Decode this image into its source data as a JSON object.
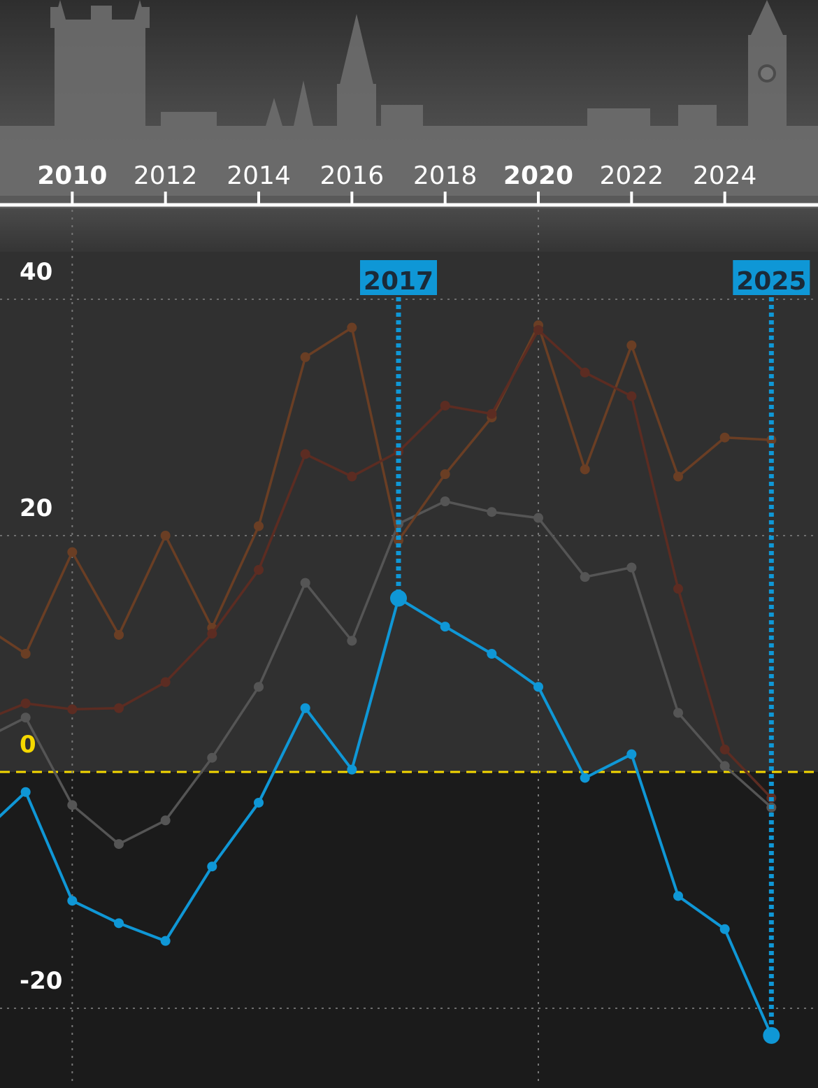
{
  "chart_data": {
    "type": "line",
    "title": "",
    "xlabel": "",
    "ylabel": "",
    "x_ticks": [
      {
        "label": "2010",
        "value": 2010,
        "bold": true
      },
      {
        "label": "2012",
        "value": 2012,
        "bold": false
      },
      {
        "label": "2014",
        "value": 2014,
        "bold": false
      },
      {
        "label": "2016",
        "value": 2016,
        "bold": false
      },
      {
        "label": "2018",
        "value": 2018,
        "bold": false
      },
      {
        "label": "2020",
        "value": 2020,
        "bold": true
      },
      {
        "label": "2022",
        "value": 2022,
        "bold": false
      },
      {
        "label": "2024",
        "value": 2024,
        "bold": false
      }
    ],
    "y_ticks": [
      {
        "label": "40",
        "value": 40
      },
      {
        "label": "20",
        "value": 20
      },
      {
        "label": "0",
        "value": 0
      },
      {
        "label": "-20",
        "value": -20
      }
    ],
    "xlim": [
      2008.45,
      2026.0
    ],
    "ylim": [
      -26.5,
      40
    ],
    "grid": true,
    "zero_line_color": "#f5d800",
    "highlights": [
      {
        "label": "2017",
        "x": 2017,
        "color": "#0f97d6"
      },
      {
        "label": "2025",
        "x": 2025,
        "color": "#0f97d6"
      }
    ],
    "series": [
      {
        "color": "#0f97d6",
        "emphasis": true,
        "x": [
          2008,
          2009,
          2010,
          2011,
          2012,
          2013,
          2014,
          2015,
          2016,
          2017,
          2018,
          2019,
          2020,
          2021,
          2022,
          2023,
          2024,
          2025
        ],
        "y": [
          -5.4,
          -1.7,
          -10.9,
          -12.8,
          -14.3,
          -8.0,
          -2.6,
          5.4,
          0.2,
          14.7,
          12.3,
          10.0,
          7.2,
          -0.5,
          1.5,
          -10.5,
          -13.3,
          -22.3
        ]
      },
      {
        "color": "#555555",
        "emphasis": false,
        "x": [
          2008,
          2009,
          2010,
          2011,
          2012,
          2013,
          2014,
          2015,
          2016,
          2017,
          2018,
          2019,
          2020,
          2021,
          2022,
          2023,
          2024,
          2025
        ],
        "y": [
          2.6,
          4.6,
          -2.8,
          -6.1,
          -4.1,
          1.2,
          7.2,
          16.0,
          11.1,
          21.0,
          22.9,
          22.0,
          21.5,
          16.5,
          17.3,
          5.0,
          0.5,
          -3.0
        ]
      },
      {
        "color": "#6a3e24",
        "emphasis": false,
        "x": [
          2008,
          2009,
          2010,
          2011,
          2012,
          2013,
          2014,
          2015,
          2016,
          2017,
          2018,
          2019,
          2020,
          2021,
          2022,
          2023,
          2024,
          2025
        ],
        "y": [
          12.6,
          10.0,
          18.6,
          11.6,
          20.0,
          12.2,
          20.8,
          35.1,
          37.6,
          19.6,
          25.2,
          30.0,
          37.8,
          25.6,
          36.1,
          25.0,
          28.3,
          28.1
        ]
      },
      {
        "color": "#5c2c22",
        "emphasis": false,
        "x": [
          2008,
          2009,
          2010,
          2011,
          2012,
          2013,
          2014,
          2015,
          2016,
          2017,
          2018,
          2019,
          2020,
          2021,
          2022,
          2023,
          2024,
          2025
        ],
        "y": [
          4.2,
          5.8,
          5.3,
          5.4,
          7.6,
          11.7,
          17.1,
          26.9,
          25.0,
          27.1,
          31.0,
          30.3,
          37.4,
          33.8,
          31.8,
          15.5,
          1.9,
          -2.2
        ]
      }
    ]
  }
}
